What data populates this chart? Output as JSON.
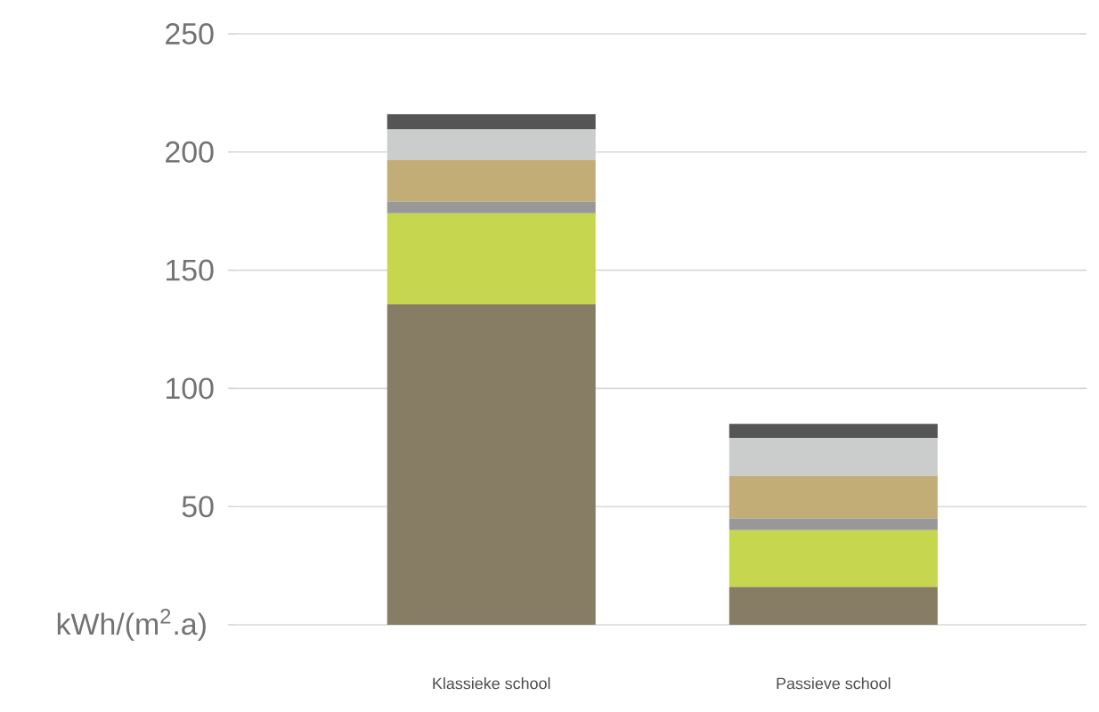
{
  "chart_data": {
    "type": "bar",
    "stacked": true,
    "grid": "y",
    "categories": [
      "Klassieke school",
      "Passieve school"
    ],
    "series": [
      {
        "color": "#877d64",
        "values": [
          135.5,
          16
        ]
      },
      {
        "color": "#c6d64e",
        "values": [
          38.5,
          24
        ]
      },
      {
        "color": "#989898",
        "values": [
          5,
          5
        ]
      },
      {
        "color": "#c2ad76",
        "values": [
          17.5,
          18
        ]
      },
      {
        "color": "#cbcdcc",
        "values": [
          13,
          16
        ]
      },
      {
        "color": "#555555",
        "values": [
          6.5,
          6
        ]
      }
    ],
    "ylim": [
      0,
      250
    ],
    "ylabel": "kWh/(m$^{2}$.a)",
    "yticks": [
      {
        "value": 0,
        "label": null
      },
      50,
      100,
      150,
      200,
      250
    ]
  }
}
